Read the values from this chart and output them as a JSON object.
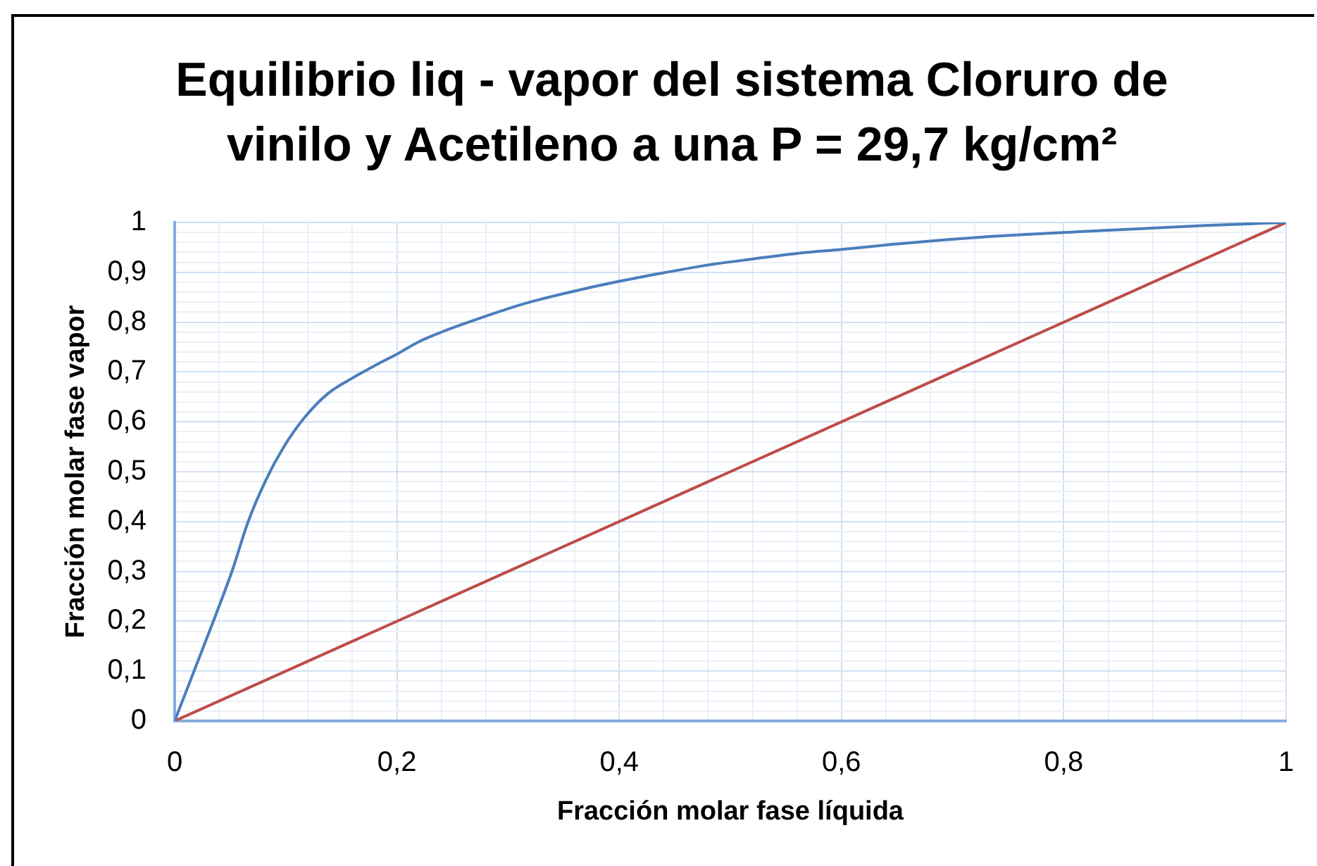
{
  "chart_data": {
    "type": "line",
    "title": "Equilibrio liq - vapor del sistema Cloruro de vinilo y Acetileno a una P = 29,7 kg/cm²",
    "xlabel": "Fracción molar fase líquida",
    "ylabel": "Fracción molar fase vapor",
    "xlim": [
      0,
      1
    ],
    "ylim": [
      0,
      1
    ],
    "xticks": [
      0,
      {
        "value": 0.04,
        "label": null
      },
      {
        "value": 0.08,
        "label": null
      },
      {
        "value": 0.12,
        "label": null
      },
      {
        "value": 0.16,
        "label": null
      },
      {
        "value": 0.2,
        "label": "0,2"
      },
      {
        "value": 0.24,
        "label": null
      },
      {
        "value": 0.28,
        "label": null
      },
      {
        "value": 0.32,
        "label": null
      },
      {
        "value": 0.36,
        "label": null
      },
      {
        "value": 0.4,
        "label": "0,4"
      },
      {
        "value": 0.44,
        "label": null
      },
      {
        "value": 0.48,
        "label": null
      },
      {
        "value": 0.52,
        "label": null
      },
      {
        "value": 0.56,
        "label": null
      },
      {
        "value": 0.6,
        "label": "0,6"
      },
      {
        "value": 0.64,
        "label": null
      },
      {
        "value": 0.68,
        "label": null
      },
      {
        "value": 0.72,
        "label": null
      },
      {
        "value": 0.76,
        "label": null
      },
      {
        "value": 0.8,
        "label": "0,8"
      },
      {
        "value": 0.84,
        "label": null
      },
      {
        "value": 0.88,
        "label": null
      },
      {
        "value": 0.92,
        "label": null
      },
      {
        "value": 0.96,
        "label": null
      },
      1
    ],
    "yticks": [
      0,
      {
        "value": 0.02,
        "label": null
      },
      {
        "value": 0.04,
        "label": null
      },
      {
        "value": 0.06,
        "label": null
      },
      {
        "value": 0.08,
        "label": null
      },
      {
        "value": 0.1,
        "label": "0,1"
      },
      {
        "value": 0.12,
        "label": null
      },
      {
        "value": 0.14,
        "label": null
      },
      {
        "value": 0.16,
        "label": null
      },
      {
        "value": 0.18,
        "label": null
      },
      {
        "value": 0.2,
        "label": "0,2"
      },
      {
        "value": 0.22,
        "label": null
      },
      {
        "value": 0.24,
        "label": null
      },
      {
        "value": 0.26,
        "label": null
      },
      {
        "value": 0.28,
        "label": null
      },
      {
        "value": 0.3,
        "label": "0,3"
      },
      {
        "value": 0.32,
        "label": null
      },
      {
        "value": 0.34,
        "label": null
      },
      {
        "value": 0.36,
        "label": null
      },
      {
        "value": 0.38,
        "label": null
      },
      {
        "value": 0.4,
        "label": "0,4"
      },
      {
        "value": 0.42,
        "label": null
      },
      {
        "value": 0.44,
        "label": null
      },
      {
        "value": 0.46,
        "label": null
      },
      {
        "value": 0.48,
        "label": null
      },
      {
        "value": 0.5,
        "label": "0,5"
      },
      {
        "value": 0.52,
        "label": null
      },
      {
        "value": 0.54,
        "label": null
      },
      {
        "value": 0.56,
        "label": null
      },
      {
        "value": 0.58,
        "label": null
      },
      {
        "value": 0.6,
        "label": "0,6"
      },
      {
        "value": 0.62,
        "label": null
      },
      {
        "value": 0.64,
        "label": null
      },
      {
        "value": 0.66,
        "label": null
      },
      {
        "value": 0.68,
        "label": null
      },
      {
        "value": 0.7,
        "label": "0,7"
      },
      {
        "value": 0.72,
        "label": null
      },
      {
        "value": 0.74,
        "label": null
      },
      {
        "value": 0.76,
        "label": null
      },
      {
        "value": 0.78,
        "label": null
      },
      {
        "value": 0.8,
        "label": "0,8"
      },
      {
        "value": 0.82,
        "label": null
      },
      {
        "value": 0.84,
        "label": null
      },
      {
        "value": 0.86,
        "label": null
      },
      {
        "value": 0.88,
        "label": null
      },
      {
        "value": 0.9,
        "label": "0,9"
      },
      {
        "value": 0.92,
        "label": null
      },
      {
        "value": 0.94,
        "label": null
      },
      {
        "value": 0.96,
        "label": null
      },
      {
        "value": 0.98,
        "label": null
      },
      1
    ],
    "grid": true,
    "legend": false,
    "marker": "none",
    "series": [
      {
        "color": "#4a7ebb",
        "x": [
          0,
          0.036,
          0.052,
          0.066,
          0.082,
          0.098,
          0.117,
          0.138,
          0.16,
          0.181,
          0.2,
          0.219,
          0.24,
          0.267,
          0.316,
          0.359,
          0.4,
          0.44,
          0.478,
          0.521,
          0.564,
          0.6,
          0.65,
          0.692,
          0.735,
          0.8,
          0.864,
          0.928,
          1
        ],
        "values": [
          0,
          0.207,
          0.303,
          0.399,
          0.483,
          0.549,
          0.609,
          0.657,
          0.688,
          0.714,
          0.736,
          0.76,
          0.78,
          0.802,
          0.838,
          0.862,
          0.882,
          0.899,
          0.914,
          0.927,
          0.939,
          0.946,
          0.957,
          0.965,
          0.972,
          0.98,
          0.987,
          0.994,
          1
        ]
      },
      {
        "color": "#be4b48",
        "x": [
          0,
          1
        ],
        "values": [
          0,
          1
        ]
      }
    ]
  }
}
